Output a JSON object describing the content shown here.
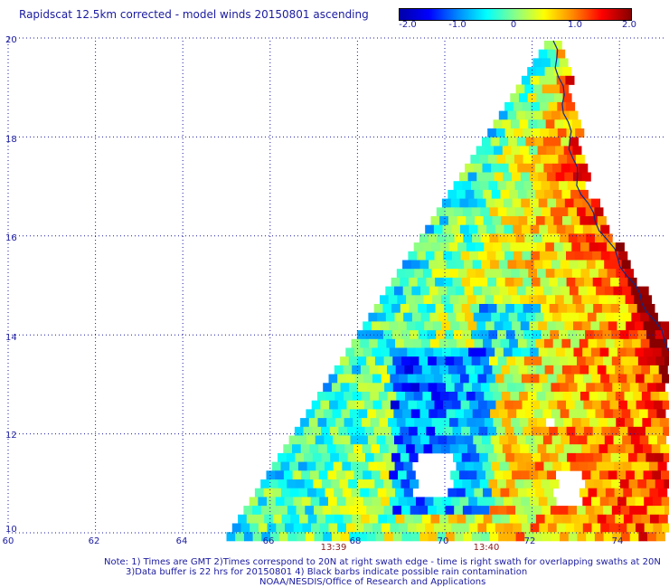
{
  "title": "Rapidscat 12.5km corrected - model winds 20150801 ascending",
  "colorbar": {
    "ticks": [
      "-2.0",
      "-1.0",
      "0",
      "1.0",
      "2.0"
    ],
    "tick_values": [
      -2.0,
      -1.0,
      0,
      1.0,
      2.0
    ],
    "range": [
      -2.0,
      2.0
    ],
    "colors": [
      "#0000aa",
      "#0000ff",
      "#0088ff",
      "#00ffff",
      "#88ff88",
      "#ffff00",
      "#ff8800",
      "#ff0000",
      "#880000"
    ]
  },
  "axes": {
    "lat_labels": [
      "20",
      "18",
      "16",
      "14",
      "12",
      "10"
    ],
    "lat_values": [
      20,
      18,
      16,
      14,
      12,
      10
    ],
    "lon_labels": [
      "60",
      "62",
      "64",
      "66",
      "68",
      "70",
      "72",
      "74"
    ],
    "lon_values": [
      60,
      62,
      64,
      66,
      68,
      70,
      72,
      74
    ],
    "lat_range": [
      10,
      20
    ],
    "lon_range": [
      60,
      75
    ]
  },
  "times": [
    {
      "label": "13:39",
      "lon": 68.0
    },
    {
      "label": "13:40",
      "lon": 71.0
    }
  ],
  "notes": [
    "Note: 1) Times are GMT 2)Times correspond to 20N at right swath edge - time is right swath for overlapping swaths at 20N",
    "3)Data buffer is 22 hrs for 20150801 4) Black barbs indicate possible rain contamination",
    "NOAA/NESDIS/Office of Research and Applications"
  ],
  "gridlines": true
}
